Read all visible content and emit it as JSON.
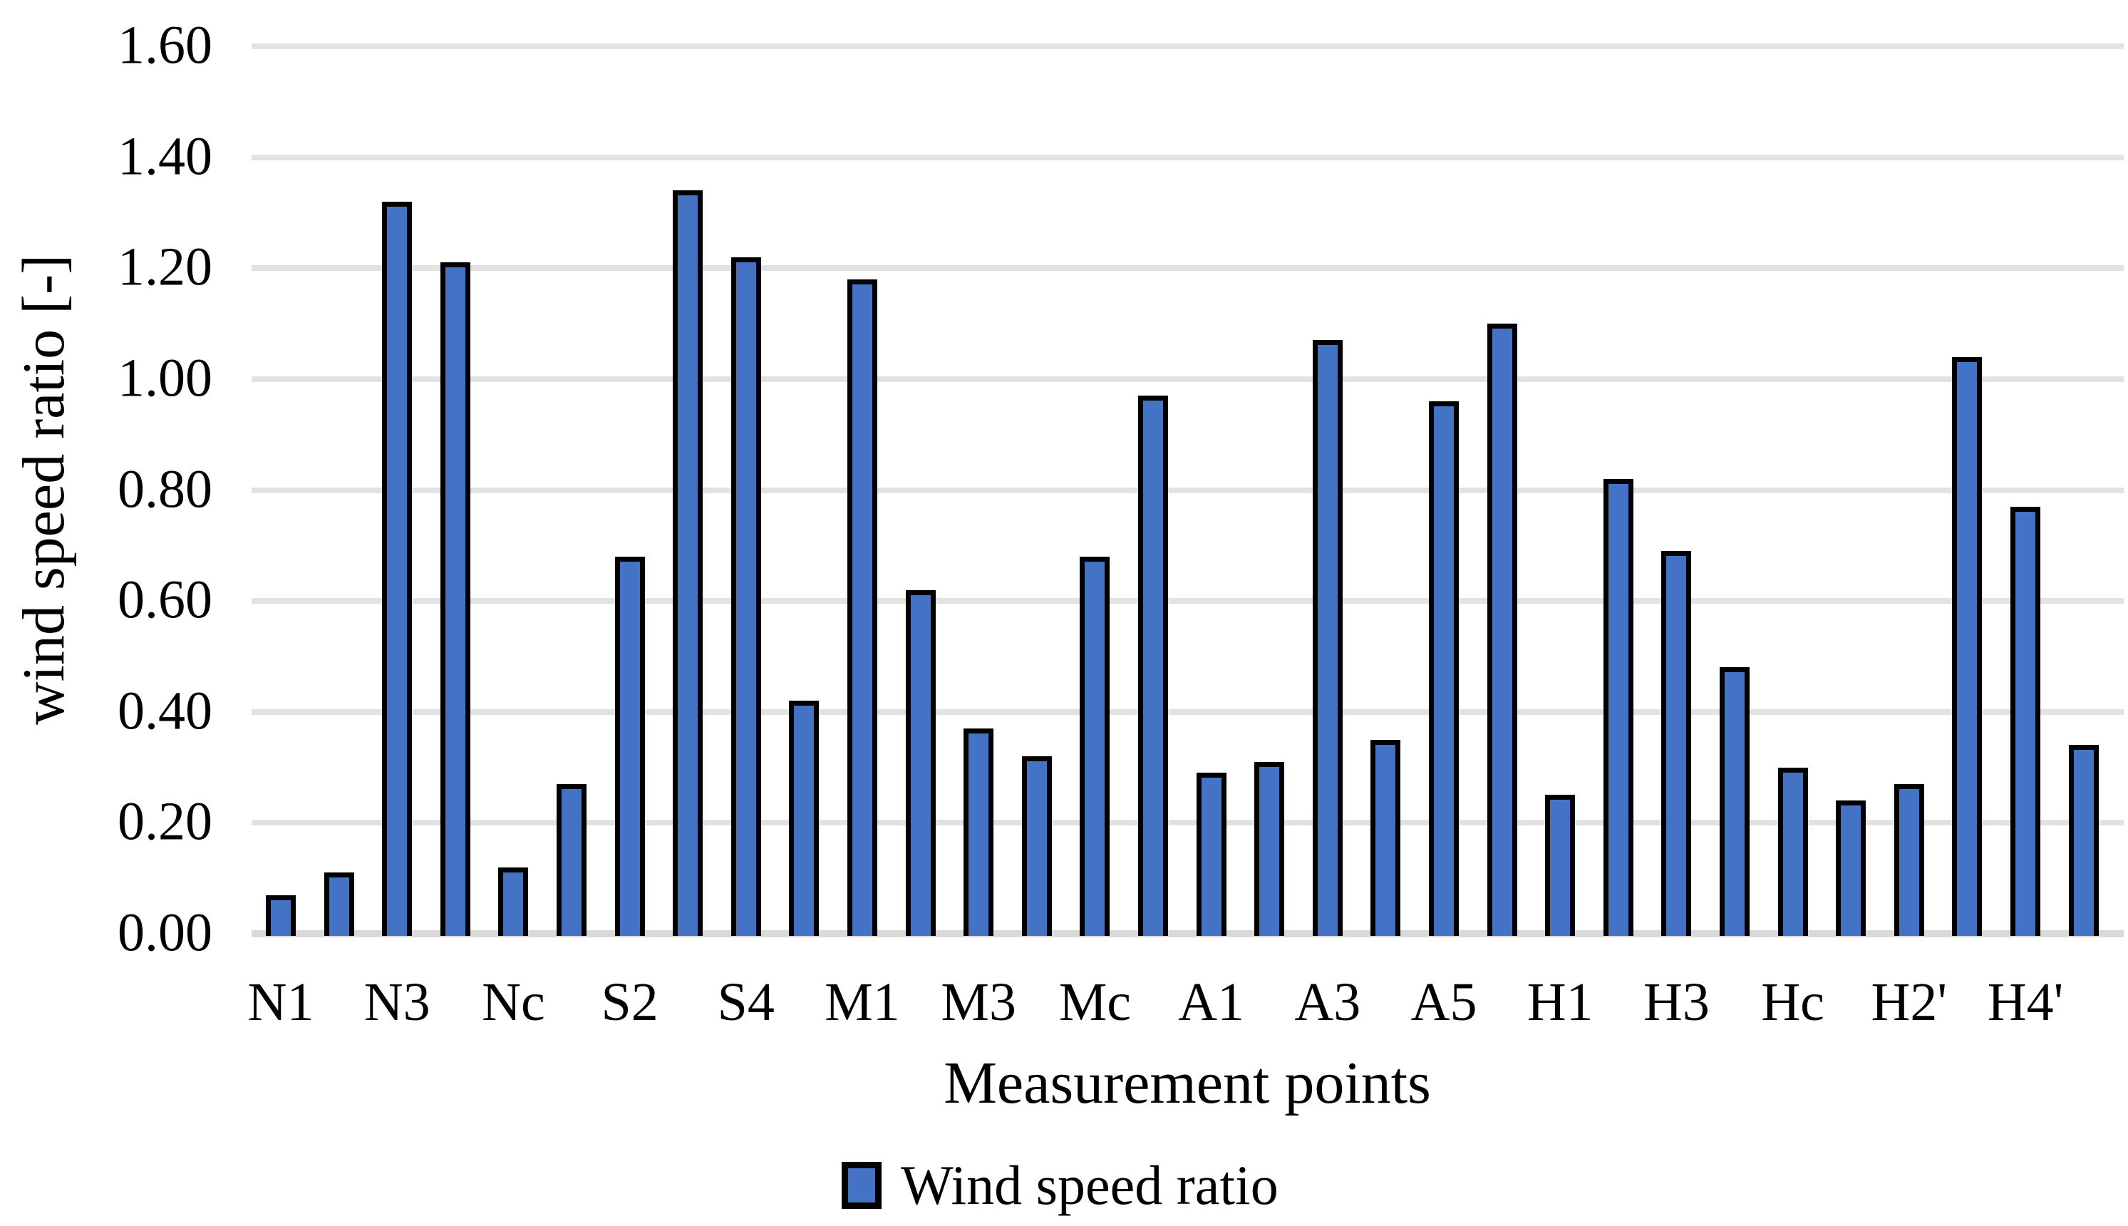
{
  "chart_data": {
    "type": "bar",
    "title": "",
    "xlabel": "Measurement points",
    "ylabel": "wind speed ratio [-]",
    "ylim": [
      0,
      1.6
    ],
    "ytick_step": 0.2,
    "ytick_labels": [
      "0.00",
      "0.20",
      "0.40",
      "0.60",
      "0.80",
      "1.00",
      "1.20",
      "1.40",
      "1.60"
    ],
    "grid": "horizontal-major",
    "x_tick_labels": [
      "N1",
      "N3",
      "Nc",
      "S2",
      "S4",
      "M1",
      "M3",
      "Mc",
      "A1",
      "A3",
      "A5",
      "H1",
      "H3",
      "Hc",
      "H2'",
      "H4'"
    ],
    "x_ticks_label_every_n_bars": 2,
    "values": [
      0.07,
      0.11,
      1.32,
      1.21,
      0.12,
      0.27,
      0.68,
      1.34,
      1.22,
      0.42,
      1.18,
      0.62,
      0.37,
      0.32,
      0.68,
      0.97,
      0.29,
      0.31,
      1.07,
      0.35,
      0.96,
      1.1,
      0.25,
      0.82,
      0.69,
      0.48,
      0.3,
      0.24,
      0.27,
      1.04,
      0.77,
      0.34
    ],
    "legend": {
      "label": "Wind speed ratio",
      "position": "bottom-center"
    }
  },
  "colors": {
    "bar_fill": "#4472C4",
    "bar_border": "#000000",
    "gridline": "#E2E2E2",
    "axis_line": "#D9D9D9",
    "text": "#000000",
    "background": "#FFFFFF"
  }
}
